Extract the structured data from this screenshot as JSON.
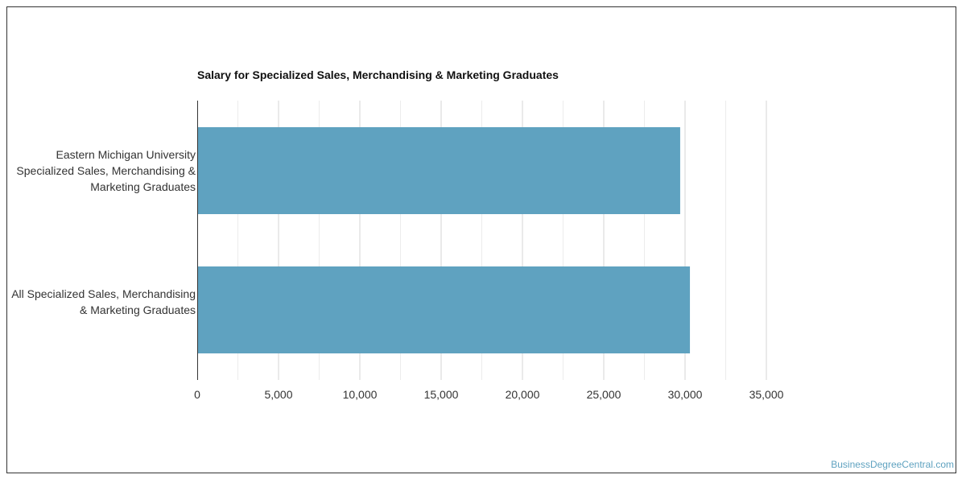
{
  "chart_data": {
    "type": "bar",
    "orientation": "horizontal",
    "title": "Salary for Specialized Sales, Merchandising & Marketing Graduates",
    "categories": [
      "Eastern Michigan University Specialized Sales, Merchandising & Marketing Graduates",
      "All Specialized Sales, Merchandising & Marketing Graduates"
    ],
    "values": [
      29700,
      30300
    ],
    "xlim": [
      0,
      36000
    ],
    "xticks": [
      0,
      5000,
      10000,
      15000,
      20000,
      25000,
      30000,
      35000
    ],
    "xtick_labels": [
      "0",
      "5,000",
      "10,000",
      "15,000",
      "20,000",
      "25,000",
      "30,000",
      "35,000"
    ],
    "xlabel": "",
    "ylabel": "",
    "grid": true,
    "bar_color": "#5fa2c0",
    "grid_color": "#dddddd",
    "legend": "none"
  },
  "watermark": "BusinessDegreeCentral.com"
}
